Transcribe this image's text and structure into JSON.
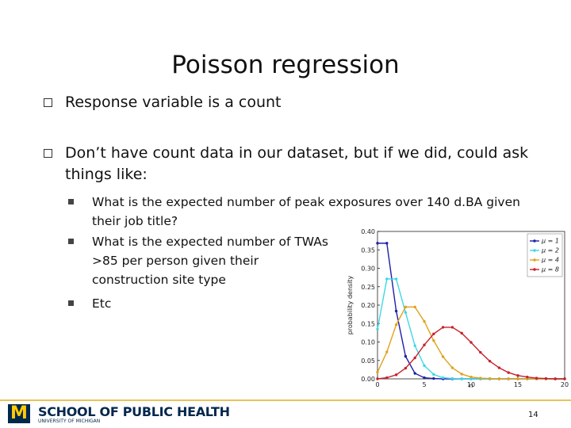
{
  "slide": {
    "title": "Poisson regression",
    "bullets": [
      {
        "text": "Response variable is a count"
      },
      {
        "text": "Don’t have count data in our dataset, but if we did, could ask things like:",
        "sub": [
          "What is the expected number of peak exposures over 140 d.BA given their job title?",
          "What is the expected number of TWAs >85 per person given their construction site type",
          "Etc"
        ]
      }
    ],
    "footer": {
      "school": "SCHOOL OF PUBLIC HEALTH",
      "university": "UNIVERSITY OF MICHIGAN",
      "logo": "M",
      "page": "14"
    }
  },
  "chart_data": {
    "type": "line",
    "x": [
      0,
      1,
      2,
      3,
      4,
      5,
      6,
      7,
      8,
      9,
      10,
      11,
      12,
      13,
      14,
      15,
      16,
      17,
      18,
      19,
      20
    ],
    "series": [
      {
        "name": "μ = 1",
        "color": "#1f1fa8",
        "values": [
          0.368,
          0.368,
          0.184,
          0.061,
          0.015,
          0.003,
          0.001,
          0,
          0,
          0,
          0,
          0,
          0,
          0,
          0,
          0,
          0,
          0,
          0,
          0,
          0
        ]
      },
      {
        "name": "μ = 2",
        "color": "#3fd7e8",
        "values": [
          0.135,
          0.271,
          0.271,
          0.18,
          0.09,
          0.036,
          0.012,
          0.003,
          0.001,
          0,
          0,
          0,
          0,
          0,
          0,
          0,
          0,
          0,
          0,
          0,
          0
        ]
      },
      {
        "name": "μ = 4",
        "color": "#e0a21e",
        "values": [
          0.018,
          0.073,
          0.147,
          0.195,
          0.195,
          0.156,
          0.104,
          0.06,
          0.03,
          0.013,
          0.005,
          0.002,
          0.001,
          0,
          0,
          0,
          0,
          0,
          0,
          0,
          0
        ]
      },
      {
        "name": "μ = 8",
        "color": "#c8202a",
        "values": [
          0,
          0.003,
          0.011,
          0.029,
          0.057,
          0.092,
          0.122,
          0.14,
          0.14,
          0.124,
          0.099,
          0.072,
          0.048,
          0.03,
          0.017,
          0.009,
          0.005,
          0.002,
          0.001,
          0,
          0
        ]
      }
    ],
    "xlabel": "n",
    "ylabel": "probability density",
    "xlim": [
      0,
      20
    ],
    "ylim": [
      0,
      0.4
    ],
    "xticks": [
      0,
      5,
      10,
      15,
      20
    ],
    "yticks": [
      {
        "value": 0,
        "label": "0.00"
      },
      {
        "value": 0.05,
        "label": "0.05"
      },
      {
        "value": 0.1,
        "label": "0.10"
      },
      {
        "value": 0.15,
        "label": "0.15"
      },
      {
        "value": 0.2,
        "label": "0.20"
      },
      {
        "value": 0.25,
        "label": "0.25"
      },
      {
        "value": 0.3,
        "label": "0.30"
      },
      {
        "value": 0.35,
        "label": "0.35"
      },
      {
        "value": 0.4,
        "label": "0.40"
      }
    ],
    "legend": "upper right"
  }
}
